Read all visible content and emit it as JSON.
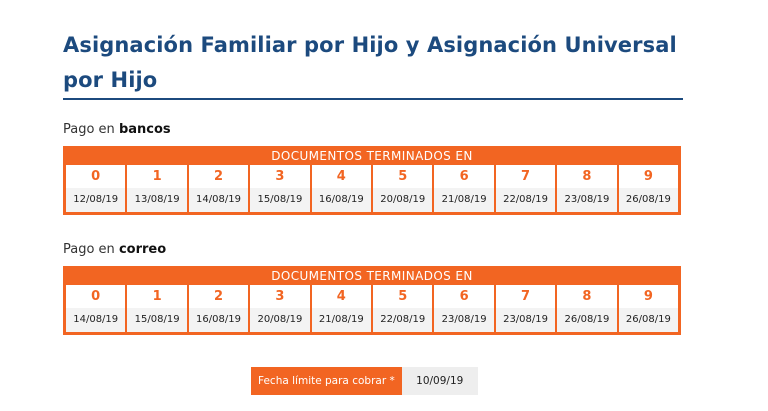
{
  "title": "Asignación Familiar por Hijo y Asignación Universal por Hijo",
  "bancos": {
    "label_prefix": "Pago en",
    "label_bold": "bancos",
    "header": "DOCUMENTOS TERMINADOS EN",
    "digits": [
      "0",
      "1",
      "2",
      "3",
      "4",
      "5",
      "6",
      "7",
      "8",
      "9"
    ],
    "dates": [
      "12/08/19",
      "13/08/19",
      "14/08/19",
      "15/08/19",
      "16/08/19",
      "20/08/19",
      "21/08/19",
      "22/08/19",
      "23/08/19",
      "26/08/19"
    ]
  },
  "correo": {
    "label_prefix": "Pago en",
    "label_bold": "correo",
    "header": "DOCUMENTOS TERMINADOS EN",
    "digits": [
      "0",
      "1",
      "2",
      "3",
      "4",
      "5",
      "6",
      "7",
      "8",
      "9"
    ],
    "dates": [
      "14/08/19",
      "15/08/19",
      "16/08/19",
      "20/08/19",
      "21/08/19",
      "22/08/19",
      "23/08/19",
      "23/08/19",
      "26/08/19",
      "26/08/19"
    ]
  },
  "deadline": {
    "label": "Fecha límite para cobrar *",
    "value": "10/09/19"
  },
  "colors": {
    "accent": "#f26522",
    "title": "#1c4a7e"
  }
}
